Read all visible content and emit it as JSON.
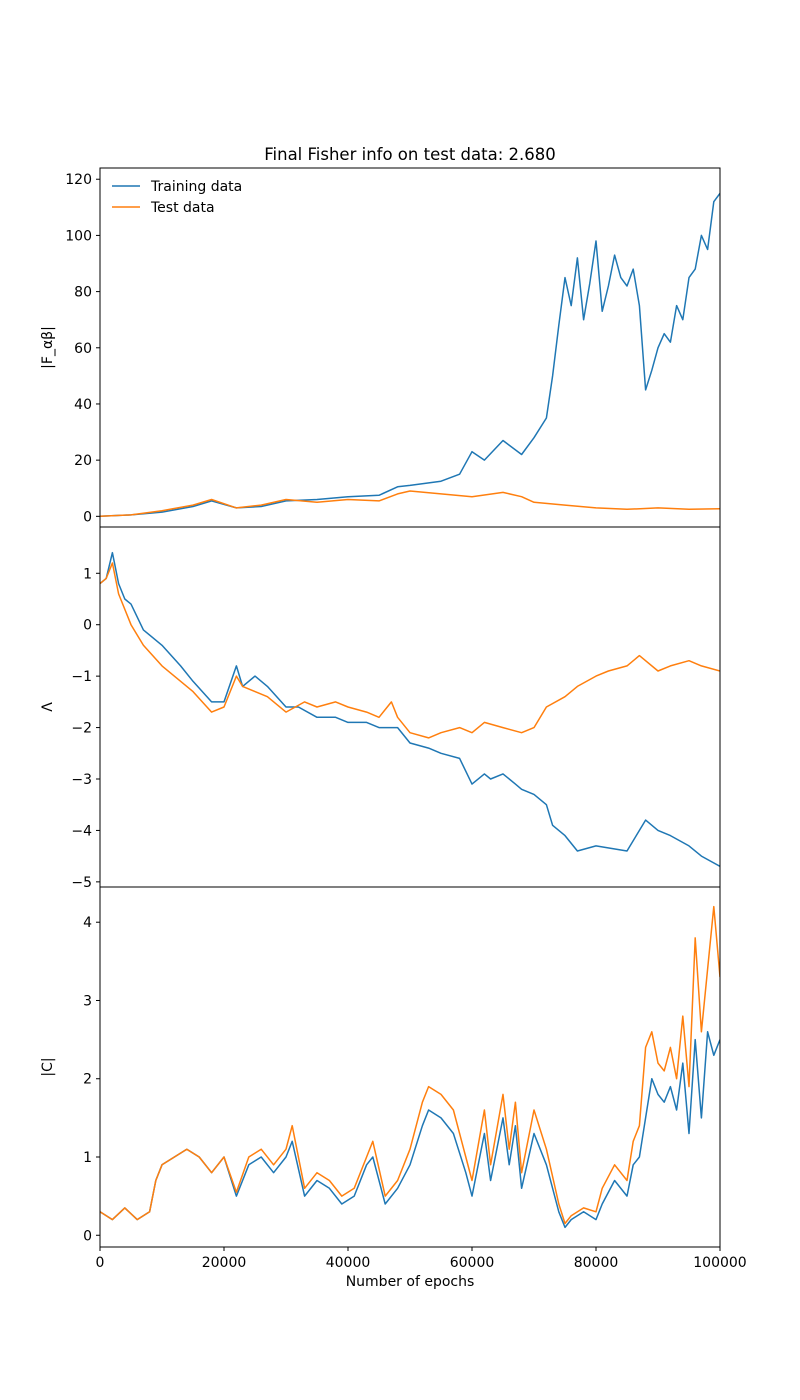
{
  "colors": {
    "training": "#1f77b4",
    "test": "#ff7f0e"
  },
  "chart_data": [
    {
      "type": "line",
      "title": "Final Fisher info on test data: 2.680",
      "ylabel": "|F_αβ|",
      "xlim": [
        0,
        100000
      ],
      "ylim": [
        -3.8,
        124
      ],
      "yticks": [
        0,
        20,
        40,
        60,
        80,
        100,
        120
      ],
      "legend": {
        "position": "top-left",
        "entries": [
          "Training data",
          "Test data"
        ]
      },
      "series": [
        {
          "name": "Training data",
          "x": [
            0,
            5000,
            10000,
            15000,
            18000,
            22000,
            26000,
            30000,
            35000,
            40000,
            45000,
            48000,
            50000,
            55000,
            58000,
            60000,
            62000,
            65000,
            68000,
            70000,
            72000,
            73000,
            74000,
            75000,
            76000,
            77000,
            78000,
            79000,
            80000,
            81000,
            82000,
            83000,
            84000,
            85000,
            86000,
            87000,
            88000,
            89000,
            90000,
            91000,
            92000,
            93000,
            94000,
            95000,
            96000,
            97000,
            98000,
            99000,
            100000
          ],
          "y": [
            0,
            0.5,
            1.5,
            3.5,
            5.5,
            3,
            3.5,
            5.5,
            6,
            7,
            7.5,
            10.5,
            11,
            12.5,
            15,
            23,
            20,
            27,
            22,
            28,
            35,
            50,
            68,
            85,
            75,
            92,
            70,
            83,
            98,
            73,
            82,
            93,
            85,
            82,
            88,
            75,
            45,
            52,
            60,
            65,
            62,
            75,
            70,
            85,
            88,
            100,
            95,
            112,
            115
          ]
        },
        {
          "name": "Test data",
          "x": [
            0,
            5000,
            10000,
            15000,
            18000,
            22000,
            26000,
            30000,
            35000,
            40000,
            45000,
            48000,
            50000,
            55000,
            60000,
            65000,
            68000,
            70000,
            75000,
            80000,
            85000,
            90000,
            95000,
            100000
          ],
          "y": [
            0,
            0.5,
            2,
            4,
            6,
            3,
            4,
            6,
            5,
            6,
            5.5,
            8,
            9,
            8,
            7,
            8.5,
            7,
            5,
            4,
            3,
            2.5,
            3,
            2.5,
            2.7
          ]
        }
      ]
    },
    {
      "type": "line",
      "ylabel": "Λ",
      "xlim": [
        0,
        100000
      ],
      "ylim": [
        -5.1,
        1.9
      ],
      "yticks": [
        -5,
        -4,
        -3,
        -2,
        -1,
        0,
        1
      ],
      "series": [
        {
          "name": "Training data",
          "x": [
            0,
            1000,
            2000,
            3000,
            4000,
            5000,
            7000,
            10000,
            13000,
            15000,
            18000,
            20000,
            22000,
            23000,
            25000,
            27000,
            30000,
            32000,
            35000,
            38000,
            40000,
            43000,
            45000,
            48000,
            50000,
            53000,
            55000,
            58000,
            60000,
            62000,
            63000,
            65000,
            67000,
            68000,
            70000,
            72000,
            73000,
            75000,
            77000,
            80000,
            85000,
            88000,
            90000,
            92000,
            95000,
            97000,
            100000
          ],
          "y": [
            0.8,
            0.9,
            1.4,
            0.8,
            0.5,
            0.4,
            -0.1,
            -0.4,
            -0.8,
            -1.1,
            -1.5,
            -1.5,
            -0.8,
            -1.2,
            -1.0,
            -1.2,
            -1.6,
            -1.6,
            -1.8,
            -1.8,
            -1.9,
            -1.9,
            -2.0,
            -2.0,
            -2.3,
            -2.4,
            -2.5,
            -2.6,
            -3.1,
            -2.9,
            -3.0,
            -2.9,
            -3.1,
            -3.2,
            -3.3,
            -3.5,
            -3.9,
            -4.1,
            -4.4,
            -4.3,
            -4.4,
            -3.8,
            -4.0,
            -4.1,
            -4.3,
            -4.5,
            -4.7
          ]
        },
        {
          "name": "Test data",
          "x": [
            0,
            1000,
            2000,
            3000,
            5000,
            7000,
            10000,
            13000,
            15000,
            18000,
            20000,
            22000,
            23000,
            25000,
            27000,
            30000,
            33000,
            35000,
            38000,
            40000,
            43000,
            45000,
            47000,
            48000,
            50000,
            53000,
            55000,
            58000,
            60000,
            62000,
            65000,
            68000,
            70000,
            72000,
            75000,
            77000,
            80000,
            82000,
            85000,
            87000,
            90000,
            92000,
            95000,
            97000,
            100000
          ],
          "y": [
            0.8,
            0.9,
            1.2,
            0.6,
            0.0,
            -0.4,
            -0.8,
            -1.1,
            -1.3,
            -1.7,
            -1.6,
            -1.0,
            -1.2,
            -1.3,
            -1.4,
            -1.7,
            -1.5,
            -1.6,
            -1.5,
            -1.6,
            -1.7,
            -1.8,
            -1.5,
            -1.8,
            -2.1,
            -2.2,
            -2.1,
            -2.0,
            -2.1,
            -1.9,
            -2.0,
            -2.1,
            -2.0,
            -1.6,
            -1.4,
            -1.2,
            -1.0,
            -0.9,
            -0.8,
            -0.6,
            -0.9,
            -0.8,
            -0.7,
            -0.8,
            -0.9
          ]
        }
      ]
    },
    {
      "type": "line",
      "ylabel": "|C|",
      "xlabel": "Number of epochs",
      "xlim": [
        0,
        100000
      ],
      "ylim": [
        -0.15,
        4.45
      ],
      "yticks": [
        0,
        1,
        2,
        3,
        4
      ],
      "xticks": [
        0,
        20000,
        40000,
        60000,
        80000,
        100000
      ],
      "series": [
        {
          "name": "Training data",
          "x": [
            0,
            2000,
            4000,
            6000,
            8000,
            9000,
            10000,
            12000,
            14000,
            16000,
            18000,
            20000,
            22000,
            24000,
            26000,
            28000,
            30000,
            31000,
            33000,
            35000,
            37000,
            39000,
            41000,
            43000,
            44000,
            46000,
            48000,
            50000,
            52000,
            53000,
            55000,
            57000,
            59000,
            60000,
            62000,
            63000,
            65000,
            66000,
            67000,
            68000,
            70000,
            72000,
            74000,
            75000,
            76000,
            78000,
            80000,
            81000,
            83000,
            85000,
            86000,
            87000,
            88000,
            89000,
            90000,
            91000,
            92000,
            93000,
            94000,
            95000,
            96000,
            97000,
            98000,
            99000,
            100000
          ],
          "y": [
            0.3,
            0.2,
            0.35,
            0.2,
            0.3,
            0.7,
            0.9,
            1.0,
            1.1,
            1.0,
            0.8,
            1.0,
            0.5,
            0.9,
            1.0,
            0.8,
            1.0,
            1.2,
            0.5,
            0.7,
            0.6,
            0.4,
            0.5,
            0.9,
            1.0,
            0.4,
            0.6,
            0.9,
            1.4,
            1.6,
            1.5,
            1.3,
            0.8,
            0.5,
            1.3,
            0.7,
            1.5,
            0.9,
            1.4,
            0.6,
            1.3,
            0.9,
            0.3,
            0.1,
            0.2,
            0.3,
            0.2,
            0.4,
            0.7,
            0.5,
            0.9,
            1.0,
            1.5,
            2.0,
            1.8,
            1.7,
            1.9,
            1.6,
            2.2,
            1.3,
            2.5,
            1.5,
            2.6,
            2.3,
            2.5
          ]
        },
        {
          "name": "Test data",
          "x": [
            0,
            2000,
            4000,
            6000,
            8000,
            9000,
            10000,
            12000,
            14000,
            16000,
            18000,
            20000,
            22000,
            24000,
            26000,
            28000,
            30000,
            31000,
            33000,
            35000,
            37000,
            39000,
            41000,
            43000,
            44000,
            46000,
            48000,
            50000,
            52000,
            53000,
            55000,
            57000,
            59000,
            60000,
            62000,
            63000,
            65000,
            66000,
            67000,
            68000,
            70000,
            72000,
            74000,
            75000,
            76000,
            78000,
            80000,
            81000,
            83000,
            85000,
            86000,
            87000,
            88000,
            89000,
            90000,
            91000,
            92000,
            93000,
            94000,
            95000,
            96000,
            97000,
            98000,
            99000,
            100000
          ],
          "y": [
            0.3,
            0.2,
            0.35,
            0.2,
            0.3,
            0.7,
            0.9,
            1.0,
            1.1,
            1.0,
            0.8,
            1.0,
            0.55,
            1.0,
            1.1,
            0.9,
            1.1,
            1.4,
            0.6,
            0.8,
            0.7,
            0.5,
            0.6,
            1.0,
            1.2,
            0.5,
            0.7,
            1.1,
            1.7,
            1.9,
            1.8,
            1.6,
            1.0,
            0.7,
            1.6,
            0.9,
            1.8,
            1.1,
            1.7,
            0.8,
            1.6,
            1.1,
            0.4,
            0.15,
            0.25,
            0.35,
            0.3,
            0.6,
            0.9,
            0.7,
            1.2,
            1.4,
            2.4,
            2.6,
            2.2,
            2.1,
            2.4,
            2.0,
            2.8,
            1.9,
            3.8,
            2.6,
            3.4,
            4.2,
            3.3
          ]
        }
      ]
    }
  ]
}
